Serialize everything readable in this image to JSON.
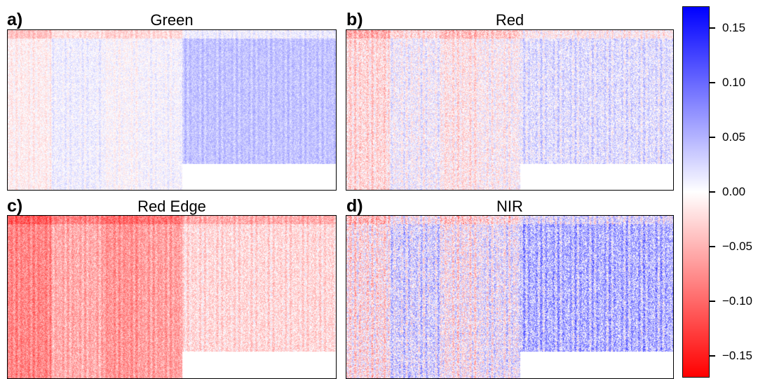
{
  "panels": [
    {
      "letter": "a)",
      "title": "Green"
    },
    {
      "letter": "b)",
      "title": "Red"
    },
    {
      "letter": "c)",
      "title": "Red Edge"
    },
    {
      "letter": "d)",
      "title": "NIR"
    }
  ],
  "chart_data": {
    "type": "heatmap",
    "colormap": {
      "low": "#ff0000",
      "mid": "#ffffff",
      "high": "#0000ff"
    },
    "color_range": [
      -0.17,
      0.17
    ],
    "colorbar_ticks": [
      "0.15",
      "0.10",
      "0.05",
      "0.00",
      "−0.05",
      "−0.10",
      "−0.15"
    ],
    "colorbar_tick_values": [
      0.15,
      0.1,
      0.05,
      0.0,
      -0.05,
      -0.1,
      -0.15
    ],
    "panel_patterns": [
      {
        "panel": "Green",
        "left_strip": 0.0,
        "middle_strip": 0.01,
        "right_block": 0.04,
        "noise": 0.02
      },
      {
        "panel": "Red",
        "left_strip": -0.015,
        "middle_strip": 0.005,
        "right_block": 0.02,
        "noise": 0.035
      },
      {
        "panel": "Red Edge",
        "left_strip": -0.07,
        "middle_strip": -0.055,
        "right_block": -0.025,
        "noise": 0.03
      },
      {
        "panel": "NIR",
        "left_strip": -0.005,
        "middle_strip": 0.025,
        "right_block": 0.05,
        "noise": 0.055
      }
    ]
  }
}
